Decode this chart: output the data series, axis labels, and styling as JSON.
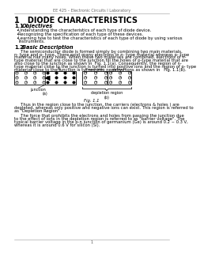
{
  "header": "EE 425 – Electronic Circuits I Laboratory",
  "title": "1   DIODE CHARACTERISTICS",
  "sec1_num": "1.1",
  "sec1_name": "Objectives",
  "bullets": [
    "Understanding the characteristics of each type of diode device.",
    "Recognizing the specification of each type of these devices.",
    "Learning how to test the characteristics of each type of diode by using various\ninstruments."
  ],
  "sec2_num": "1.2",
  "sec2_name": "Basic Description",
  "body1_lines": [
    "     The semiconductor diode is formed simply by combining two main materials,",
    "n- type and p- type. There exist many electrons in n- type material whereas p- type",
    "material has many holes. When these two materials are combined, electrons of n-",
    "type material that are close to the junction fill the holes of p-type material that are",
    "also close to the junction as shown in  Fig. 1.1(a). Consequently, the region of n-",
    "type material close to the junction is turned into positive ions and the region of p- type",
    "material close to the junction is turned into negative ions as shown in   Fig. 1.1(b)."
  ],
  "fig_caption": "Fig. 1.1",
  "body2_lines": [
    "     Thus in the region close to the junction, the carriers (electrons & holes ) are",
    "depleted, whereas only positive and negative ions can exist. This region is referred to",
    "as \"Depletion Region\"."
  ],
  "body3_lines": [
    "     The force that prohibits the electrons and holes from passing the junction due",
    "to the effect of ions in the depletion region is referred to as \"barrier voltage\". The",
    "typical barrier voltage in the p-n junction of germanium (Ge) is around 0.2 ~ 0.3 V,",
    "whereas it is around 0.6 V for silicon (Si)."
  ],
  "footer_text": "1",
  "bg_color": "#ffffff",
  "text_color": "#000000",
  "header_fontsize": 3.5,
  "title_fontsize": 7.0,
  "section_fontsize": 4.8,
  "body_fontsize": 3.8,
  "label_fontsize": 3.5
}
